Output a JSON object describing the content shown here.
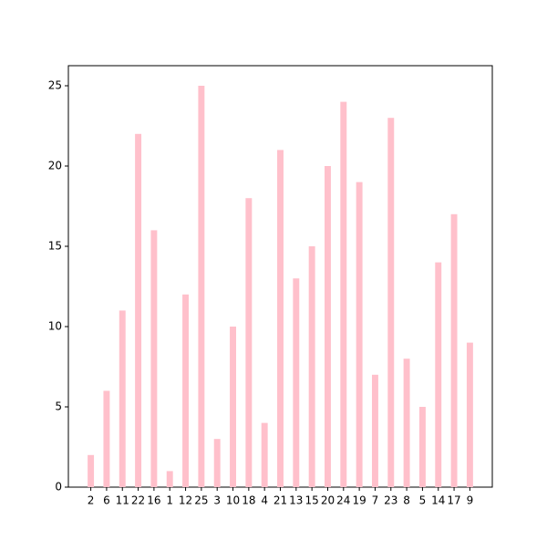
{
  "chart_data": {
    "type": "bar",
    "categories": [
      "2",
      "6",
      "11",
      "22",
      "16",
      "1",
      "12",
      "25",
      "3",
      "10",
      "18",
      "4",
      "21",
      "13",
      "15",
      "20",
      "24",
      "19",
      "7",
      "23",
      "8",
      "5",
      "14",
      "17",
      "9"
    ],
    "values": [
      2,
      6,
      11,
      22,
      16,
      1,
      12,
      25,
      3,
      10,
      18,
      4,
      21,
      13,
      15,
      20,
      24,
      19,
      7,
      23,
      8,
      5,
      14,
      17,
      9
    ],
    "color": "#ffc0cb",
    "ylim": [
      0,
      26.25
    ],
    "yticks": [
      0,
      5,
      10,
      15,
      20,
      25
    ],
    "grid": false
  }
}
